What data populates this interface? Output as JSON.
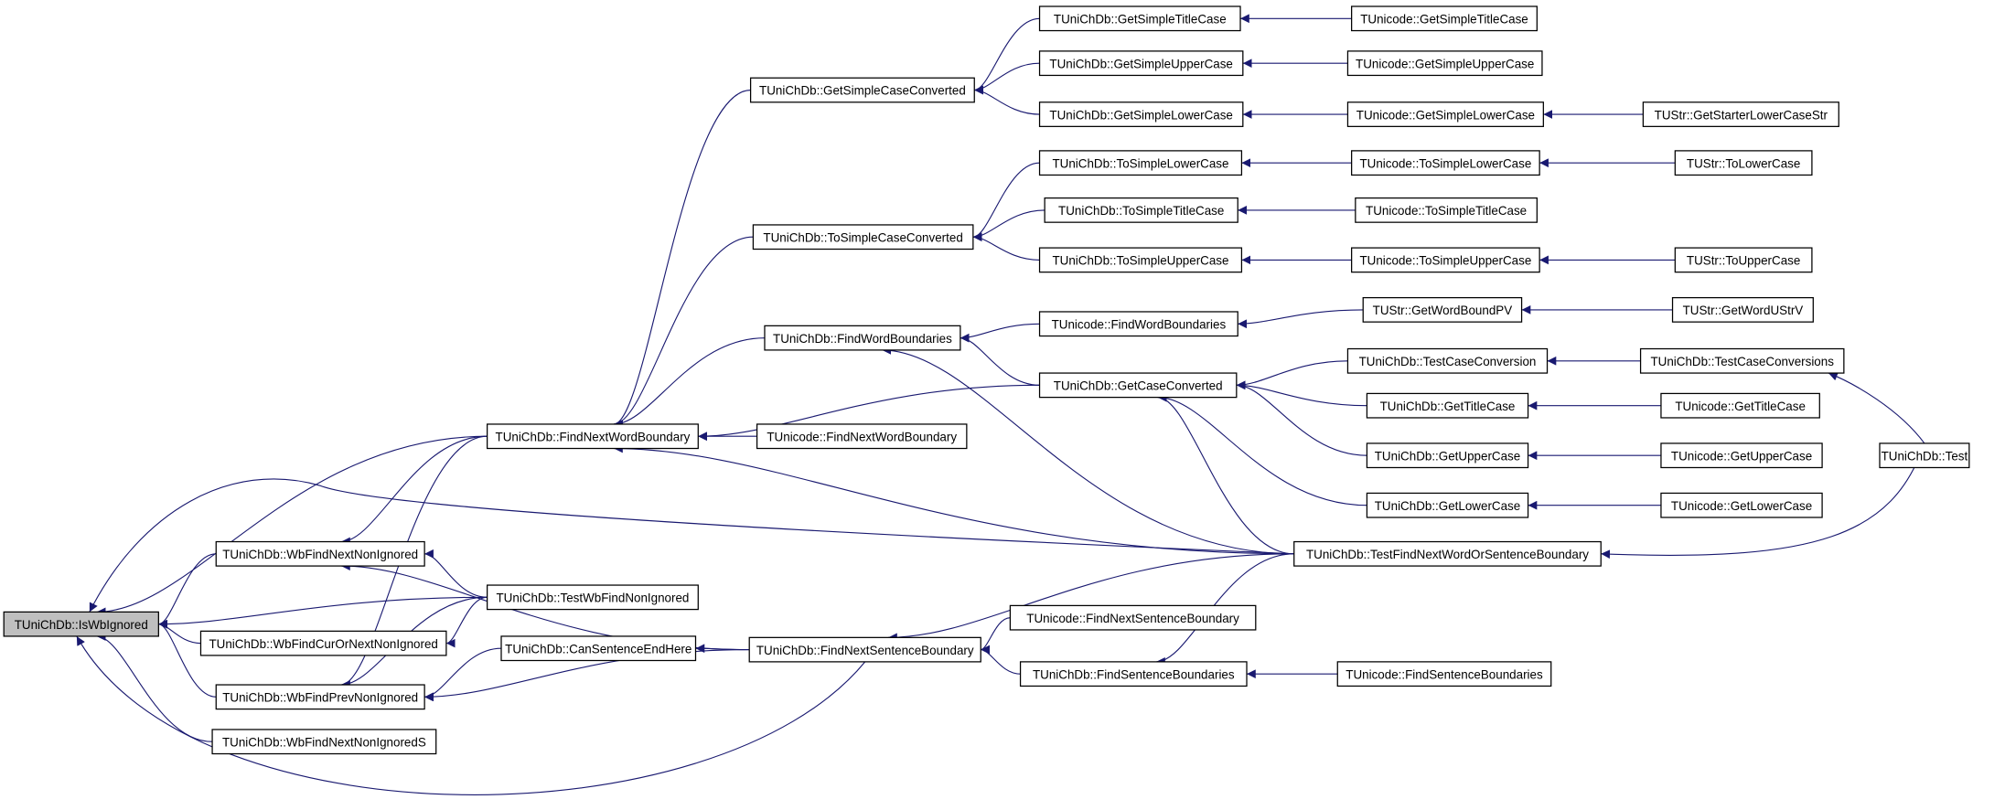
{
  "colors": {
    "edge": "#191970",
    "focus_fill": "#bfbfbf",
    "node_border": "#000000",
    "background": "#ffffff"
  },
  "nodes": [
    {
      "id": "iswb",
      "label": "TUniChDb::IsWbIgnored",
      "focus": true
    },
    {
      "id": "wbnext",
      "label": "TUniChDb::WbFindNextNonIgnored"
    },
    {
      "id": "wbcur",
      "label": "TUniChDb::WbFindCurOrNextNonIgnored"
    },
    {
      "id": "wbprev",
      "label": "TUniChDb::WbFindPrevNonIgnored"
    },
    {
      "id": "wbnexts",
      "label": "TUniChDb::WbFindNextNonIgnoredS"
    },
    {
      "id": "fnwb",
      "label": "TUniChDb::FindNextWordBoundary"
    },
    {
      "id": "testwb",
      "label": "TUniChDb::TestWbFindNonIgnored"
    },
    {
      "id": "canend",
      "label": "TUniChDb::CanSentenceEndHere"
    },
    {
      "id": "gscc",
      "label": "TUniChDb::GetSimpleCaseConverted"
    },
    {
      "id": "tscc",
      "label": "TUniChDb::ToSimpleCaseConverted"
    },
    {
      "id": "fwb",
      "label": "TUniChDb::FindWordBoundaries"
    },
    {
      "id": "ufnwb",
      "label": "TUnicode::FindNextWordBoundary"
    },
    {
      "id": "fnsb",
      "label": "TUniChDb::FindNextSentenceBoundary"
    },
    {
      "id": "gstc",
      "label": "TUniChDb::GetSimpleTitleCase"
    },
    {
      "id": "gsuc",
      "label": "TUniChDb::GetSimpleUpperCase"
    },
    {
      "id": "gslc",
      "label": "TUniChDb::GetSimpleLowerCase"
    },
    {
      "id": "tslc",
      "label": "TUniChDb::ToSimpleLowerCase"
    },
    {
      "id": "tstc",
      "label": "TUniChDb::ToSimpleTitleCase"
    },
    {
      "id": "tsuc",
      "label": "TUniChDb::ToSimpleUpperCase"
    },
    {
      "id": "ufwb",
      "label": "TUnicode::FindWordBoundaries"
    },
    {
      "id": "gcc",
      "label": "TUniChDb::GetCaseConverted"
    },
    {
      "id": "ufnsb",
      "label": "TUnicode::FindNextSentenceBoundary"
    },
    {
      "id": "fsb",
      "label": "TUniChDb::FindSentenceBoundaries"
    },
    {
      "id": "ugstc",
      "label": "TUnicode::GetSimpleTitleCase"
    },
    {
      "id": "ugsuc",
      "label": "TUnicode::GetSimpleUpperCase"
    },
    {
      "id": "ugslc",
      "label": "TUnicode::GetSimpleLowerCase"
    },
    {
      "id": "utslc",
      "label": "TUnicode::ToSimpleLowerCase"
    },
    {
      "id": "utstc",
      "label": "TUnicode::ToSimpleTitleCase"
    },
    {
      "id": "utsuc",
      "label": "TUnicode::ToSimpleUpperCase"
    },
    {
      "id": "swbpv",
      "label": "TUStr::GetWordBoundPV"
    },
    {
      "id": "tcc",
      "label": "TUniChDb::TestCaseConversion"
    },
    {
      "id": "gtc",
      "label": "TUniChDb::GetTitleCase"
    },
    {
      "id": "guc",
      "label": "TUniChDb::GetUpperCase"
    },
    {
      "id": "glc",
      "label": "TUniChDb::GetLowerCase"
    },
    {
      "id": "tfnwos",
      "label": "TUniChDb::TestFindNextWordOrSentenceBoundary"
    },
    {
      "id": "ufsb",
      "label": "TUnicode::FindSentenceBoundaries"
    },
    {
      "id": "sglcs",
      "label": "TUStr::GetStarterLowerCaseStr"
    },
    {
      "id": "stlc",
      "label": "TUStr::ToLowerCase"
    },
    {
      "id": "stuc",
      "label": "TUStr::ToUpperCase"
    },
    {
      "id": "swusv",
      "label": "TUStr::GetWordUStrV"
    },
    {
      "id": "tccs",
      "label": "TUniChDb::TestCaseConversions"
    },
    {
      "id": "ugtc",
      "label": "TUnicode::GetTitleCase"
    },
    {
      "id": "uguc",
      "label": "TUnicode::GetUpperCase"
    },
    {
      "id": "uglc",
      "label": "TUnicode::GetLowerCase"
    },
    {
      "id": "test",
      "label": "TUniChDb::Test"
    }
  ],
  "edges": [
    [
      "fnwb",
      "iswb"
    ],
    [
      "wbnext",
      "iswb"
    ],
    [
      "testwb",
      "iswb"
    ],
    [
      "wbcur",
      "iswb"
    ],
    [
      "wbprev",
      "iswb"
    ],
    [
      "wbnexts",
      "iswb"
    ],
    [
      "fnsb",
      "iswb"
    ],
    [
      "tfnwos",
      "iswb"
    ],
    [
      "fnwb",
      "wbnext"
    ],
    [
      "testwb",
      "wbnext"
    ],
    [
      "fnsb",
      "wbnext"
    ],
    [
      "testwb",
      "wbcur"
    ],
    [
      "testwb",
      "wbprev"
    ],
    [
      "fnwb",
      "wbprev"
    ],
    [
      "canend",
      "wbprev"
    ],
    [
      "fnsb",
      "wbprev"
    ],
    [
      "gscc",
      "fnwb"
    ],
    [
      "tscc",
      "fnwb"
    ],
    [
      "fwb",
      "fnwb"
    ],
    [
      "gcc",
      "fnwb"
    ],
    [
      "ufnwb",
      "fnwb"
    ],
    [
      "tfnwos",
      "fnwb"
    ],
    [
      "fnsb",
      "canend"
    ],
    [
      "tfnwos",
      "fnsb"
    ],
    [
      "ufnsb",
      "fnsb"
    ],
    [
      "fsb",
      "fnsb"
    ],
    [
      "gstc",
      "gscc"
    ],
    [
      "gsuc",
      "gscc"
    ],
    [
      "gslc",
      "gscc"
    ],
    [
      "tslc",
      "tscc"
    ],
    [
      "tstc",
      "tscc"
    ],
    [
      "tsuc",
      "tscc"
    ],
    [
      "ufwb",
      "fwb"
    ],
    [
      "gcc",
      "fwb"
    ],
    [
      "tfnwos",
      "fwb"
    ],
    [
      "ugstc",
      "gstc"
    ],
    [
      "ugsuc",
      "gsuc"
    ],
    [
      "ugslc",
      "gslc"
    ],
    [
      "sglcs",
      "ugslc"
    ],
    [
      "utslc",
      "tslc"
    ],
    [
      "utstc",
      "tstc"
    ],
    [
      "utsuc",
      "tsuc"
    ],
    [
      "stlc",
      "utslc"
    ],
    [
      "stuc",
      "utsuc"
    ],
    [
      "swbpv",
      "ufwb"
    ],
    [
      "swusv",
      "swbpv"
    ],
    [
      "tcc",
      "gcc"
    ],
    [
      "gtc",
      "gcc"
    ],
    [
      "guc",
      "gcc"
    ],
    [
      "glc",
      "gcc"
    ],
    [
      "tfnwos",
      "gcc"
    ],
    [
      "tccs",
      "tcc"
    ],
    [
      "ugtc",
      "gtc"
    ],
    [
      "uguc",
      "guc"
    ],
    [
      "uglc",
      "glc"
    ],
    [
      "test",
      "tccs"
    ],
    [
      "test",
      "tfnwos"
    ],
    [
      "tfnwos",
      "fsb"
    ],
    [
      "ufsb",
      "fsb"
    ]
  ]
}
